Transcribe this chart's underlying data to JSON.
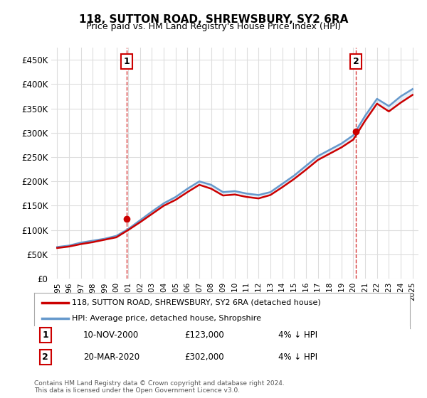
{
  "title": "118, SUTTON ROAD, SHREWSBURY, SY2 6RA",
  "subtitle": "Price paid vs. HM Land Registry's House Price Index (HPI)",
  "legend_line1": "118, SUTTON ROAD, SHREWSBURY, SY2 6RA (detached house)",
  "legend_line2": "HPI: Average price, detached house, Shropshire",
  "annotation1_label": "1",
  "annotation1_date": "10-NOV-2000",
  "annotation1_price": 123000,
  "annotation1_hpi": "4% ↓ HPI",
  "annotation1_year": 2000.86,
  "annotation2_label": "2",
  "annotation2_date": "20-MAR-2020",
  "annotation2_price": 302000,
  "annotation2_hpi": "4% ↓ HPI",
  "annotation2_year": 2020.22,
  "footer": "Contains HM Land Registry data © Crown copyright and database right 2024.\nThis data is licensed under the Open Government Licence v3.0.",
  "red_color": "#cc0000",
  "blue_color": "#6699cc",
  "annotation_box_color": "#cc0000",
  "grid_color": "#dddddd",
  "bg_color": "#ffffff",
  "ylim": [
    0,
    475000
  ],
  "yticks": [
    0,
    50000,
    100000,
    150000,
    200000,
    250000,
    300000,
    350000,
    400000,
    450000
  ],
  "years_hpi": [
    1995,
    1996,
    1997,
    1998,
    1999,
    2000,
    2001,
    2002,
    2003,
    2004,
    2005,
    2006,
    2007,
    2008,
    2009,
    2010,
    2011,
    2012,
    2013,
    2014,
    2015,
    2016,
    2017,
    2018,
    2019,
    2020,
    2021,
    2022,
    2023,
    2024,
    2025
  ],
  "hpi_values": [
    65000,
    68000,
    74000,
    78000,
    82000,
    88000,
    102000,
    120000,
    138000,
    155000,
    168000,
    185000,
    200000,
    193000,
    178000,
    180000,
    175000,
    172000,
    178000,
    195000,
    212000,
    232000,
    252000,
    265000,
    278000,
    295000,
    335000,
    370000,
    355000,
    375000,
    390000
  ],
  "red_values": [
    63000,
    66000,
    71000,
    75000,
    80000,
    85000,
    100000,
    116000,
    133000,
    150000,
    162000,
    178000,
    193000,
    185000,
    171000,
    173000,
    168000,
    165000,
    172000,
    188000,
    205000,
    224000,
    244000,
    257000,
    270000,
    286000,
    325000,
    360000,
    344000,
    362000,
    378000
  ]
}
